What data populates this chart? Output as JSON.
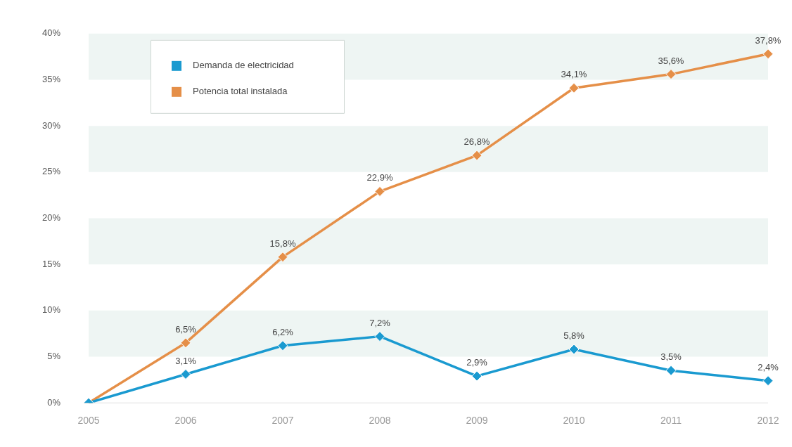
{
  "chart_data": {
    "type": "line",
    "categories": [
      "2005",
      "2006",
      "2007",
      "2008",
      "2009",
      "2010",
      "2011",
      "2012"
    ],
    "series": [
      {
        "name": "Demanda de electricidad",
        "color": "#1a9ad0",
        "values": [
          0,
          3.1,
          6.2,
          7.2,
          2.9,
          5.8,
          3.5,
          2.4
        ],
        "value_labels": [
          null,
          "3,1%",
          "6,2%",
          "7,2%",
          "2,9%",
          "5,8%",
          "3,5%",
          "2,4%"
        ]
      },
      {
        "name": "Potencia total instalada",
        "color": "#e58f48",
        "values": [
          0,
          6.5,
          15.8,
          22.9,
          26.8,
          34.1,
          35.6,
          37.8
        ],
        "value_labels": [
          null,
          "6,5%",
          "15,8%",
          "22,9%",
          "26,8%",
          "34,1%",
          "35,6%",
          "37,8%"
        ]
      }
    ],
    "ylim": [
      0,
      40
    ],
    "yticks": [
      {
        "value": 0,
        "label": "0%"
      },
      {
        "value": 5,
        "label": "5%"
      },
      {
        "value": 10,
        "label": "10%"
      },
      {
        "value": 15,
        "label": "15%"
      },
      {
        "value": 20,
        "label": "20%"
      },
      {
        "value": 25,
        "label": "25%"
      },
      {
        "value": 30,
        "label": "30%"
      },
      {
        "value": 35,
        "label": "35%"
      },
      {
        "value": 40,
        "label": "40%"
      }
    ],
    "bands": [
      {
        "axis": "y",
        "from": 5,
        "to": 10,
        "color": "#eef5f3"
      },
      {
        "axis": "y",
        "from": 15,
        "to": 20,
        "color": "#eef5f3"
      },
      {
        "axis": "y",
        "from": 25,
        "to": 30,
        "color": "#eef5f3"
      },
      {
        "axis": "y",
        "from": 35,
        "to": 40,
        "color": "#eef5f3"
      }
    ],
    "legend": "top left",
    "marker": "diamond",
    "line_style": "solid"
  }
}
